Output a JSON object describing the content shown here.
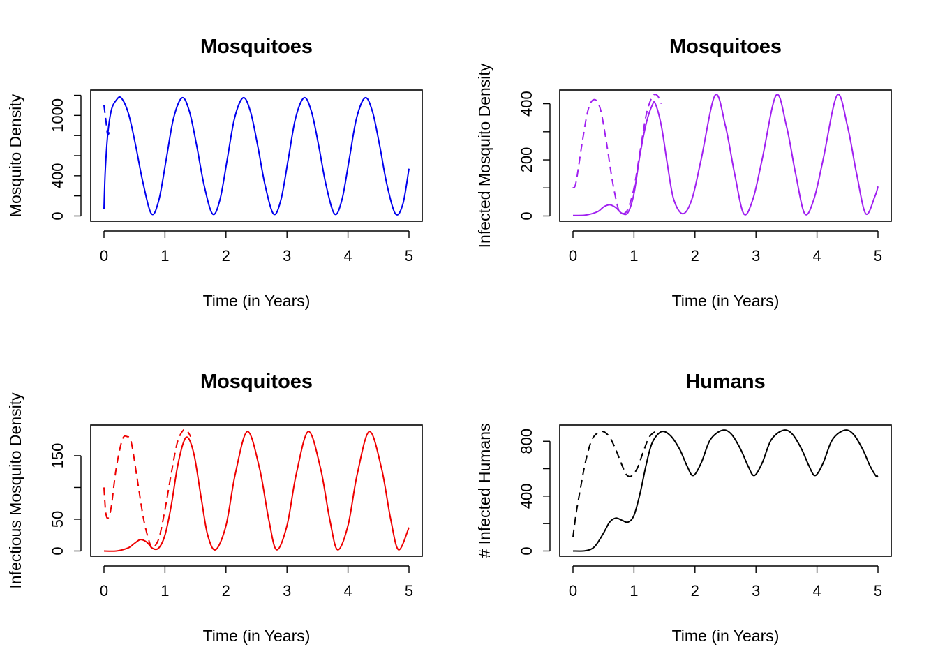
{
  "chart_data": [
    {
      "type": "line",
      "title": "Mosquitoes",
      "xlabel": "Time (in Years)",
      "ylabel": "Mosquito Density",
      "xlim": [
        0,
        5
      ],
      "ylim": [
        0,
        1200
      ],
      "xticks": [
        0,
        1,
        2,
        3,
        4,
        5
      ],
      "yticks": [
        0,
        200,
        400,
        600,
        800,
        1000,
        1200
      ],
      "ytick_labels": [
        "0",
        "",
        "400",
        "",
        "",
        "1000",
        ""
      ],
      "color": "#0000ee",
      "series": [
        {
          "style": "solid",
          "x": [
            0,
            0.02,
            0.06,
            0.12,
            0.2,
            0.28,
            0.4,
            0.52,
            0.64,
            0.78,
            0.9,
            1.02,
            1.14,
            1.28,
            1.4,
            1.52,
            1.64,
            1.78,
            1.9,
            2.02,
            2.14,
            2.28,
            2.4,
            2.52,
            2.64,
            2.78,
            2.9,
            3.02,
            3.14,
            3.28,
            3.4,
            3.52,
            3.64,
            3.78,
            3.9,
            4.02,
            4.14,
            4.28,
            4.4,
            4.52,
            4.64,
            4.78,
            4.9,
            5.0
          ],
          "y": [
            70,
            430,
            800,
            1050,
            1150,
            1175,
            1020,
            700,
            330,
            20,
            160,
            560,
            970,
            1175,
            1040,
            700,
            310,
            20,
            160,
            560,
            970,
            1175,
            1040,
            700,
            310,
            20,
            160,
            560,
            970,
            1175,
            1040,
            700,
            310,
            20,
            160,
            560,
            970,
            1175,
            1040,
            700,
            310,
            20,
            120,
            470
          ]
        },
        {
          "style": "dashed",
          "x": [
            0,
            0.03,
            0.06,
            0.1
          ],
          "y": [
            1100,
            960,
            810,
            860
          ]
        }
      ]
    },
    {
      "type": "line",
      "title": "Mosquitoes",
      "xlabel": "Time (in Years)",
      "ylabel": "Infected Mosquito Density",
      "xlim": [
        0,
        5
      ],
      "ylim": [
        0,
        430
      ],
      "xticks": [
        0,
        1,
        2,
        3,
        4,
        5
      ],
      "yticks": [
        0,
        100,
        200,
        300,
        400
      ],
      "ytick_labels": [
        "0",
        "",
        "200",
        "",
        "400"
      ],
      "color": "#a020f0",
      "series": [
        {
          "style": "solid",
          "x": [
            0,
            0.2,
            0.4,
            0.5,
            0.6,
            0.7,
            0.8,
            0.9,
            1.0,
            1.1,
            1.2,
            1.3,
            1.35,
            1.45,
            1.55,
            1.65,
            1.8,
            1.95,
            2.1,
            2.33,
            2.5,
            2.65,
            2.8,
            2.95,
            3.1,
            3.33,
            3.5,
            3.65,
            3.8,
            3.95,
            4.1,
            4.33,
            4.5,
            4.65,
            4.8,
            4.95,
            5.0
          ],
          "y": [
            2,
            3,
            15,
            32,
            40,
            30,
            10,
            12,
            80,
            220,
            330,
            395,
            400,
            320,
            180,
            60,
            8,
            60,
            200,
            430,
            320,
            150,
            8,
            60,
            200,
            430,
            320,
            150,
            8,
            60,
            200,
            430,
            320,
            150,
            8,
            70,
            105
          ]
        },
        {
          "style": "dashed",
          "x": [
            0,
            0.05,
            0.15,
            0.25,
            0.35,
            0.45,
            0.55,
            0.65,
            0.75,
            0.82,
            0.9,
            1.0,
            1.1,
            1.2,
            1.3,
            1.38,
            1.45
          ],
          "y": [
            100,
            120,
            260,
            380,
            415,
            380,
            260,
            120,
            20,
            8,
            25,
            100,
            230,
            360,
            425,
            430,
            400
          ]
        }
      ]
    },
    {
      "type": "line",
      "title": "Mosquitoes",
      "xlabel": "Time (in Years)",
      "ylabel": "Infectious Mosquito Density",
      "xlim": [
        0,
        5
      ],
      "ylim": [
        0,
        190
      ],
      "xticks": [
        0,
        1,
        2,
        3,
        4,
        5
      ],
      "yticks": [
        0,
        50,
        100,
        150
      ],
      "ytick_labels": [
        "0",
        "50",
        "",
        "150"
      ],
      "color": "#ee0000",
      "series": [
        {
          "style": "solid",
          "x": [
            0,
            0.2,
            0.4,
            0.5,
            0.6,
            0.7,
            0.8,
            0.9,
            1.0,
            1.1,
            1.2,
            1.3,
            1.38,
            1.48,
            1.6,
            1.7,
            1.83,
            2.0,
            2.15,
            2.35,
            2.55,
            2.7,
            2.83,
            3.0,
            3.15,
            3.35,
            3.55,
            3.7,
            3.83,
            4.0,
            4.15,
            4.35,
            4.55,
            4.7,
            4.83,
            5.0
          ],
          "y": [
            0,
            0,
            5,
            12,
            18,
            14,
            4,
            5,
            25,
            70,
            130,
            170,
            178,
            150,
            80,
            25,
            2,
            40,
            120,
            188,
            130,
            50,
            2,
            40,
            120,
            188,
            130,
            50,
            2,
            40,
            120,
            188,
            130,
            50,
            2,
            37
          ]
        },
        {
          "style": "dashed",
          "x": [
            0,
            0.03,
            0.07,
            0.12,
            0.2,
            0.3,
            0.38,
            0.45,
            0.55,
            0.65,
            0.75,
            0.8,
            0.9,
            1.0,
            1.1,
            1.2,
            1.3,
            1.37,
            1.42
          ],
          "y": [
            100,
            60,
            52,
            70,
            130,
            175,
            180,
            170,
            110,
            50,
            12,
            5,
            20,
            65,
            120,
            170,
            190,
            188,
            180
          ]
        }
      ]
    },
    {
      "type": "line",
      "title": "Humans",
      "xlabel": "Time (in Years)",
      "ylabel": "# Infected Humans",
      "xlim": [
        0,
        5
      ],
      "ylim": [
        0,
        880
      ],
      "xticks": [
        0,
        1,
        2,
        3,
        4,
        5
      ],
      "yticks": [
        0,
        200,
        400,
        600,
        800
      ],
      "ytick_labels": [
        "0",
        "",
        "400",
        "",
        "800"
      ],
      "color": "#000000",
      "series": [
        {
          "style": "solid",
          "x": [
            0,
            0.2,
            0.35,
            0.5,
            0.6,
            0.7,
            0.8,
            0.9,
            1.0,
            1.1,
            1.2,
            1.3,
            1.45,
            1.6,
            1.75,
            1.87,
            1.97,
            2.1,
            2.25,
            2.45,
            2.6,
            2.75,
            2.87,
            2.97,
            3.1,
            3.25,
            3.45,
            3.6,
            3.75,
            3.87,
            3.97,
            4.1,
            4.25,
            4.45,
            4.6,
            4.75,
            4.87,
            4.97,
            5.0
          ],
          "y": [
            0,
            2,
            30,
            130,
            210,
            240,
            225,
            210,
            260,
            420,
            630,
            790,
            870,
            840,
            740,
            620,
            550,
            640,
            810,
            880,
            850,
            740,
            620,
            550,
            640,
            810,
            880,
            850,
            740,
            620,
            550,
            640,
            810,
            880,
            850,
            740,
            620,
            545,
            548
          ]
        },
        {
          "style": "dashed",
          "x": [
            0,
            0.05,
            0.12,
            0.2,
            0.3,
            0.4,
            0.5,
            0.6,
            0.7,
            0.8,
            0.87,
            0.95,
            1.05,
            1.15,
            1.25,
            1.35,
            1.42
          ],
          "y": [
            100,
            270,
            450,
            640,
            800,
            860,
            870,
            830,
            740,
            630,
            560,
            545,
            600,
            720,
            830,
            870,
            872
          ]
        }
      ]
    }
  ]
}
